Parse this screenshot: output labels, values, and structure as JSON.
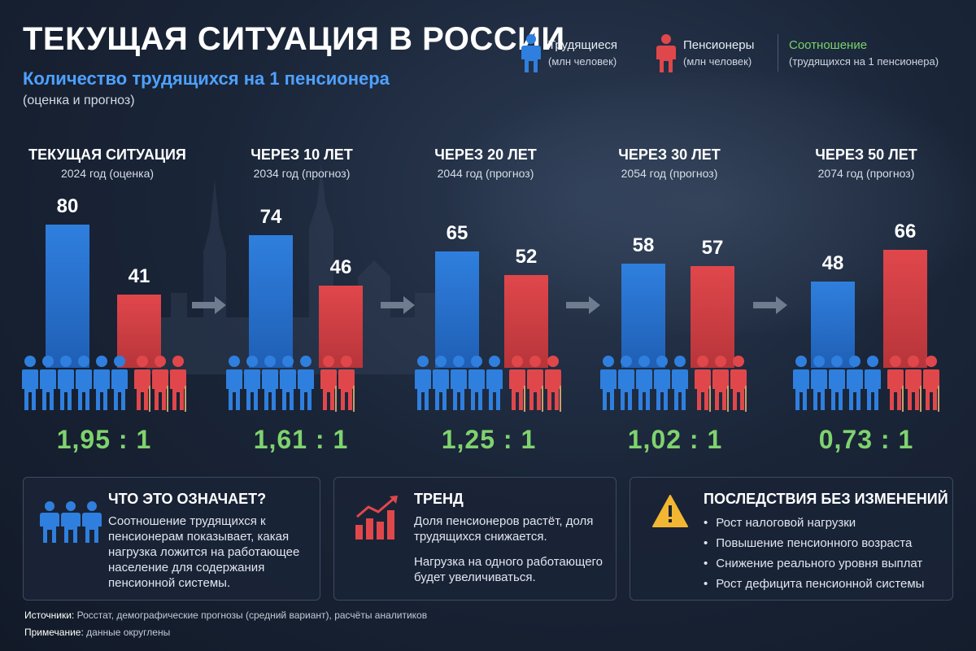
{
  "title": "ТЕКУЩАЯ СИТУАЦИЯ В РОССИИ",
  "subtitle": "Количество трудящихся на 1 пенсионера",
  "subnote": "(оценка и прогноз)",
  "legend": {
    "workers": {
      "label": "Трудящиеся",
      "sub": "(млн человек)"
    },
    "pensioners": {
      "label": "Пенсионеры",
      "sub": "(млн человек)"
    },
    "ratio": {
      "label": "Соотношение",
      "sub": "(трудящихся на 1 пенсионера)"
    }
  },
  "colors": {
    "workers": "#2f7fde",
    "pensioners": "#e0474b",
    "ratio": "#7fd36e"
  },
  "chart_data": {
    "type": "bar",
    "categories": [
      "ТЕКУЩАЯ СИТУАЦИЯ",
      "ЧЕРЕЗ 10 ЛЕТ",
      "ЧЕРЕЗ 20 ЛЕТ",
      "ЧЕРЕЗ 30 ЛЕТ",
      "ЧЕРЕЗ 50 ЛЕТ"
    ],
    "years": [
      "2024 год (оценка)",
      "2034 год (прогноз)",
      "2044 год (прогноз)",
      "2054 год (прогноз)",
      "2074 год (прогноз)"
    ],
    "series": [
      {
        "name": "Трудящиеся",
        "values": [
          80,
          74,
          65,
          58,
          48
        ]
      },
      {
        "name": "Пенсионеры",
        "values": [
          41,
          46,
          52,
          57,
          66
        ]
      }
    ],
    "ratios": [
      "1,95 : 1",
      "1,61 : 1",
      "1,25 : 1",
      "1,02 : 1",
      "0,73 : 1"
    ],
    "people_counts": {
      "workers": [
        6,
        5,
        5,
        5,
        5
      ],
      "pensioners": [
        3,
        2,
        3,
        3,
        3
      ]
    },
    "ylim": [
      0,
      100
    ]
  },
  "cards": {
    "meaning": {
      "title": "ЧТО ЭТО ОЗНАЧАЕТ?",
      "text": "Соотношение трудящихся к пенсионерам показывает, какая нагрузка ложится на работающее население для содержания пенсионной системы."
    },
    "trend": {
      "title": "ТРЕНД",
      "text1": "Доля пенсионеров растёт, доля трудящихся снижается.",
      "text2": "Нагрузка на одного работающего будет увеличиваться."
    },
    "consequences": {
      "title": "ПОСЛЕДСТВИЯ БЕЗ ИЗМЕНЕНИЙ",
      "items": [
        "Рост налоговой нагрузки",
        "Повышение пенсионного возраста",
        "Снижение реального уровня выплат",
        "Рост дефицита пенсионной системы"
      ]
    }
  },
  "footer": {
    "sources_label": "Источники:",
    "sources_text": "Росстат, демографические прогнозы (средний вариант), расчёты аналитиков",
    "note_label": "Примечание:",
    "note_text": "данные округлены"
  }
}
